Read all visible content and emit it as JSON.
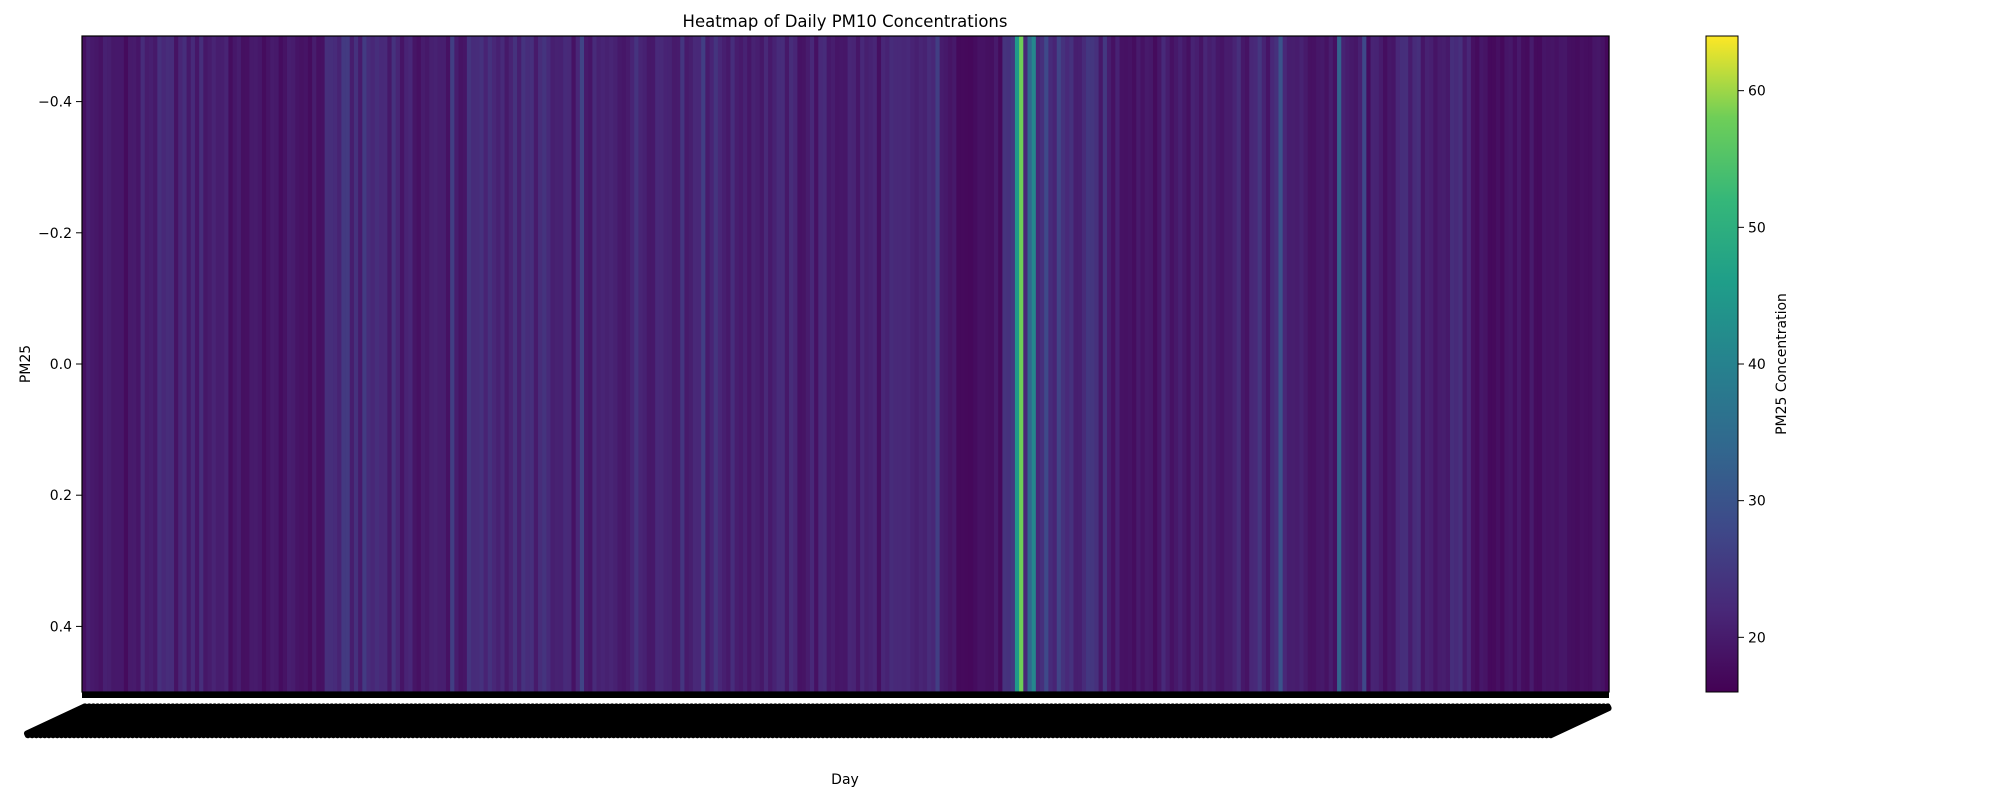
{
  "chart_data": {
    "type": "heatmap",
    "title": "Heatmap of Daily PM10 Concentrations",
    "xlabel": "Day",
    "ylabel": "PM25",
    "colorbar_label": "PM25 Concentration",
    "colormap": "viridis",
    "y_ticks": [
      -0.4,
      -0.2,
      0.0,
      0.2,
      0.4
    ],
    "y_tick_labels": [
      "−0.4",
      "−0.2",
      "0.0",
      "0.2",
      "0.4"
    ],
    "ylim": [
      -0.5,
      0.5
    ],
    "colorbar_ticks": [
      20,
      30,
      40,
      50,
      60
    ],
    "colorbar_range": [
      16,
      64
    ],
    "days": 365,
    "segments": [
      {
        "start": 0,
        "end": 14,
        "base": 19.5,
        "amp": 2.0
      },
      {
        "start": 14,
        "end": 35,
        "base": 21.0,
        "amp": 2.5
      },
      {
        "start": 35,
        "end": 58,
        "base": 19.0,
        "amp": 1.5
      },
      {
        "start": 58,
        "end": 76,
        "base": 22.5,
        "amp": 3.0
      },
      {
        "start": 76,
        "end": 92,
        "base": 20.0,
        "amp": 2.0
      },
      {
        "start": 92,
        "end": 112,
        "base": 22.0,
        "amp": 2.5
      },
      {
        "start": 112,
        "end": 130,
        "base": 20.5,
        "amp": 2.0
      },
      {
        "start": 130,
        "end": 154,
        "base": 22.0,
        "amp": 2.5
      },
      {
        "start": 154,
        "end": 170,
        "base": 21.0,
        "amp": 2.0
      },
      {
        "start": 170,
        "end": 195,
        "base": 20.5,
        "amp": 2.5
      },
      {
        "start": 195,
        "end": 206,
        "base": 21.0,
        "amp": 2.0
      },
      {
        "start": 206,
        "end": 220,
        "base": 18.5,
        "amp": 1.5
      },
      {
        "start": 220,
        "end": 245,
        "base": 22.0,
        "amp": 3.0
      },
      {
        "start": 245,
        "end": 268,
        "base": 20.0,
        "amp": 2.5
      },
      {
        "start": 268,
        "end": 290,
        "base": 21.5,
        "amp": 3.0
      },
      {
        "start": 290,
        "end": 312,
        "base": 19.5,
        "amp": 2.0
      },
      {
        "start": 312,
        "end": 332,
        "base": 21.0,
        "amp": 2.5
      },
      {
        "start": 332,
        "end": 365,
        "base": 18.5,
        "amp": 1.5
      }
    ],
    "spikes": [
      {
        "day": 204,
        "value": 26
      },
      {
        "day": 223,
        "value": 45
      },
      {
        "day": 224,
        "value": 58
      },
      {
        "day": 225,
        "value": 22
      },
      {
        "day": 226,
        "value": 34
      },
      {
        "day": 227,
        "value": 41
      },
      {
        "day": 230,
        "value": 28
      },
      {
        "day": 233,
        "value": 27
      },
      {
        "day": 286,
        "value": 30
      },
      {
        "day": 300,
        "value": 33
      },
      {
        "day": 306,
        "value": 28
      },
      {
        "day": 119,
        "value": 27
      },
      {
        "day": 148,
        "value": 26
      },
      {
        "day": 88,
        "value": 26
      }
    ]
  }
}
